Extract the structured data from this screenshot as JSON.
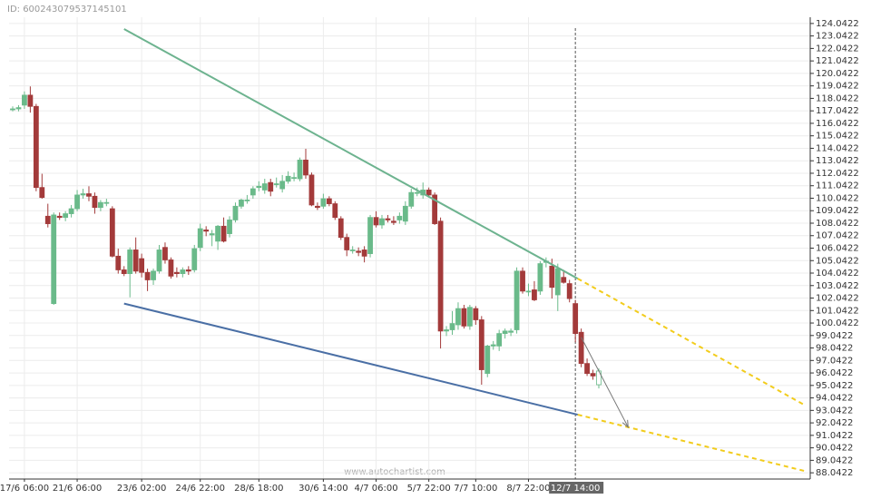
{
  "chart_data": {
    "type": "candlestick",
    "id_label": "ID: 600243079537145101",
    "watermark": "www.autochartist.com",
    "up_color": "#6aba8a",
    "down_color": "#a33a3a",
    "ylim": [
      87.5422,
      124.5422
    ],
    "yticks": [
      88.0422,
      89.0422,
      90.0422,
      91.0422,
      92.0422,
      93.0422,
      94.0422,
      95.0422,
      96.0422,
      97.0422,
      98.0422,
      99.0422,
      100.0422,
      101.0422,
      102.0422,
      103.0422,
      104.0422,
      105.0422,
      106.0422,
      107.0422,
      108.0422,
      109.0422,
      110.0422,
      111.0422,
      112.0422,
      113.0422,
      114.0422,
      115.0422,
      116.0422,
      117.0422,
      118.0422,
      119.0422,
      120.0422,
      121.0422,
      122.0422,
      123.0422,
      124.0422
    ],
    "grid": true,
    "categories": [
      null,
      null,
      "17/6 06:00",
      null,
      null,
      null,
      null,
      null,
      null,
      null,
      null,
      "21/6 06:00",
      null,
      null,
      null,
      null,
      null,
      null,
      null,
      null,
      null,
      null,
      "23/6 02:00",
      null,
      null,
      null,
      null,
      null,
      null,
      null,
      null,
      null,
      "24/6 22:00",
      null,
      null,
      null,
      null,
      null,
      null,
      null,
      null,
      null,
      "28/6 18:00",
      null,
      null,
      null,
      null,
      null,
      null,
      null,
      null,
      null,
      null,
      "30/6 14:00",
      null,
      null,
      null,
      null,
      null,
      null,
      null,
      null,
      "4/7 06:00",
      null,
      null,
      null,
      null,
      null,
      null,
      null,
      null,
      "5/7 22:00",
      null,
      null,
      null,
      null,
      null,
      null,
      null,
      "7/7 10:00",
      null,
      null,
      null,
      null,
      null,
      null,
      null,
      null,
      "8/7 22:00",
      null,
      null,
      null,
      null,
      null,
      null,
      null,
      "12/7 14:00",
      null,
      null,
      null,
      null
    ],
    "ohlc": [
      [
        117.2,
        117.4,
        117.0,
        117.2
      ],
      [
        117.2,
        117.5,
        117.0,
        117.3
      ],
      [
        117.5,
        118.6,
        117.2,
        118.3
      ],
      [
        118.3,
        119.0,
        116.9,
        117.4
      ],
      [
        117.4,
        117.6,
        110.6,
        110.9
      ],
      [
        110.9,
        112.0,
        110.0,
        110.1
      ],
      [
        108.6,
        109.6,
        107.7,
        108.0
      ],
      [
        101.6,
        108.9,
        101.5,
        108.7
      ],
      [
        108.6,
        108.9,
        108.3,
        108.5
      ],
      [
        108.5,
        109.0,
        108.2,
        108.8
      ],
      [
        108.8,
        109.5,
        108.5,
        109.2
      ],
      [
        109.2,
        110.7,
        109.0,
        110.3
      ],
      [
        110.3,
        110.8,
        110.0,
        110.4
      ],
      [
        110.4,
        111.0,
        109.8,
        110.2
      ],
      [
        110.2,
        110.5,
        108.8,
        109.3
      ],
      [
        109.3,
        109.9,
        109.0,
        109.7
      ],
      [
        109.7,
        110.0,
        109.4,
        109.7
      ],
      [
        109.2,
        109.4,
        105.3,
        105.4
      ],
      [
        105.4,
        106.0,
        104.0,
        104.3
      ],
      [
        104.3,
        104.6,
        103.8,
        104.0
      ],
      [
        104.0,
        106.1,
        102.1,
        105.9
      ],
      [
        105.9,
        106.9,
        104.0,
        104.2
      ],
      [
        105.2,
        105.6,
        103.7,
        104.1
      ],
      [
        104.1,
        104.4,
        102.6,
        103.5
      ],
      [
        103.5,
        104.4,
        103.1,
        104.2
      ],
      [
        104.2,
        106.3,
        104.0,
        105.9
      ],
      [
        106.1,
        106.5,
        104.8,
        105.1
      ],
      [
        105.1,
        105.3,
        103.6,
        103.8
      ],
      [
        104.1,
        104.5,
        103.7,
        104.0
      ],
      [
        104.0,
        104.5,
        103.7,
        104.3
      ],
      [
        104.3,
        104.6,
        103.9,
        104.2
      ],
      [
        104.3,
        106.3,
        104.1,
        106.0
      ],
      [
        106.1,
        108.0,
        105.8,
        107.6
      ],
      [
        107.5,
        107.8,
        107.0,
        107.4
      ],
      [
        107.1,
        107.5,
        106.2,
        107.2
      ],
      [
        106.6,
        107.9,
        105.9,
        107.8
      ],
      [
        107.8,
        108.5,
        106.5,
        106.6
      ],
      [
        107.2,
        108.6,
        106.9,
        108.3
      ],
      [
        108.3,
        109.7,
        108.1,
        109.4
      ],
      [
        109.4,
        110.0,
        109.2,
        109.9
      ],
      [
        109.9,
        110.3,
        109.6,
        109.9
      ],
      [
        110.3,
        111.0,
        110.0,
        110.8
      ],
      [
        110.9,
        111.4,
        110.6,
        111.0
      ],
      [
        110.7,
        111.6,
        110.4,
        111.2
      ],
      [
        111.3,
        111.6,
        110.2,
        110.6
      ],
      [
        111.2,
        111.7,
        110.9,
        111.2
      ],
      [
        110.8,
        111.9,
        110.5,
        111.4
      ],
      [
        111.4,
        112.2,
        111.2,
        111.8
      ],
      [
        111.7,
        112.1,
        111.4,
        111.7
      ],
      [
        111.6,
        113.3,
        111.4,
        113.1
      ],
      [
        113.1,
        114.0,
        111.6,
        111.9
      ],
      [
        111.9,
        112.1,
        109.4,
        109.5
      ],
      [
        109.4,
        109.7,
        109.1,
        109.3
      ],
      [
        109.4,
        110.4,
        109.2,
        110.0
      ],
      [
        110.0,
        110.2,
        109.4,
        109.6
      ],
      [
        109.6,
        109.8,
        108.3,
        108.5
      ],
      [
        108.4,
        108.6,
        106.7,
        106.9
      ],
      [
        106.9,
        107.2,
        105.4,
        105.9
      ],
      [
        105.9,
        106.2,
        105.6,
        105.9
      ],
      [
        105.8,
        106.1,
        105.4,
        105.7
      ],
      [
        105.9,
        106.2,
        104.9,
        105.4
      ],
      [
        105.6,
        108.7,
        105.3,
        108.5
      ],
      [
        108.5,
        109.0,
        107.7,
        107.9
      ],
      [
        107.9,
        108.7,
        107.6,
        108.4
      ],
      [
        108.4,
        108.7,
        108.1,
        108.3
      ],
      [
        108.2,
        108.6,
        107.9,
        108.1
      ],
      [
        108.3,
        108.9,
        108.0,
        108.6
      ],
      [
        108.2,
        109.8,
        107.9,
        109.4
      ],
      [
        109.4,
        110.8,
        109.2,
        110.5
      ],
      [
        110.5,
        110.9,
        110.2,
        110.5
      ],
      [
        110.3,
        111.3,
        110.0,
        110.7
      ],
      [
        110.7,
        110.9,
        110.1,
        110.3
      ],
      [
        110.3,
        110.5,
        107.9,
        108.0
      ],
      [
        108.2,
        108.5,
        98.0,
        99.4
      ],
      [
        99.4,
        99.8,
        99.0,
        99.5
      ],
      [
        99.5,
        101.0,
        99.1,
        100.0
      ],
      [
        99.9,
        101.7,
        99.5,
        101.2
      ],
      [
        101.2,
        101.5,
        99.6,
        99.8
      ],
      [
        99.8,
        101.5,
        99.5,
        101.3
      ],
      [
        101.2,
        101.4,
        99.9,
        100.3
      ],
      [
        100.3,
        100.6,
        95.1,
        96.3
      ],
      [
        96.0,
        98.3,
        95.7,
        98.2
      ],
      [
        98.2,
        98.6,
        97.9,
        98.3
      ],
      [
        98.2,
        99.5,
        97.8,
        99.2
      ],
      [
        99.2,
        99.6,
        98.8,
        99.4
      ],
      [
        99.3,
        99.6,
        99.0,
        99.4
      ],
      [
        99.5,
        104.5,
        99.2,
        104.2
      ],
      [
        104.2,
        104.5,
        102.4,
        102.6
      ],
      [
        102.6,
        103.2,
        102.2,
        102.6
      ],
      [
        102.7,
        103.4,
        101.8,
        101.9
      ],
      [
        102.6,
        105.0,
        102.3,
        104.8
      ],
      [
        104.9,
        105.3,
        104.5,
        105.0
      ],
      [
        104.6,
        105.2,
        102.0,
        102.9
      ],
      [
        102.3,
        104.8,
        101.0,
        104.4
      ],
      [
        103.7,
        104.3,
        103.2,
        103.3
      ],
      [
        103.2,
        103.5,
        101.7,
        102.0
      ],
      [
        101.6,
        101.9,
        98.5,
        99.2
      ],
      [
        99.3,
        99.6,
        96.5,
        96.8
      ],
      [
        96.8,
        97.2,
        95.8,
        96.0
      ],
      [
        96.0,
        96.3,
        95.5,
        95.8
      ],
      [
        95.1,
        96.4,
        94.8,
        96.2
      ]
    ],
    "pattern_lines": [
      {
        "color": "#6db38f",
        "dashed": false,
        "from": [
          19,
          123.6
        ],
        "to": [
          96.4,
          103.6
        ]
      },
      {
        "color": "#4a6fa5",
        "dashed": false,
        "from": [
          19,
          101.6
        ],
        "to": [
          96.4,
          92.7
        ]
      },
      {
        "color": "#f2cc1c",
        "dashed": true,
        "from": [
          96.4,
          103.6
        ],
        "to": [
          135,
          93.5
        ]
      },
      {
        "color": "#f2cc1c",
        "dashed": true,
        "from": [
          96.4,
          92.7
        ],
        "to": [
          135,
          88.2
        ]
      }
    ],
    "forecast_arrow": {
      "color": "#777777",
      "from": [
        97,
        98.9
      ],
      "to": [
        105,
        91.7
      ]
    }
  }
}
